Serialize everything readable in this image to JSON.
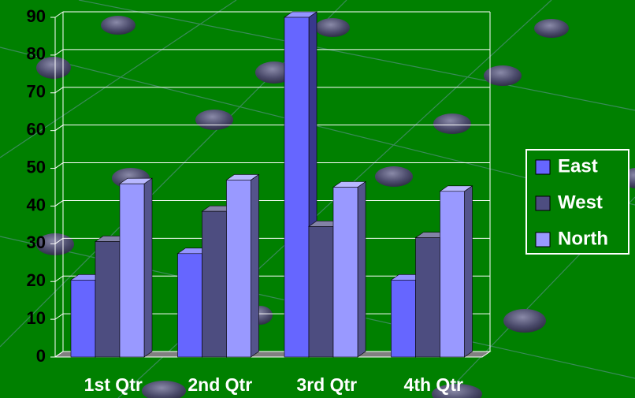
{
  "chart_data": {
    "type": "bar3d",
    "categories": [
      "1st Qtr",
      "2nd Qtr",
      "3rd Qtr",
      "4th Qtr"
    ],
    "series": [
      {
        "name": "East",
        "color": "#6666ff",
        "values": [
          20.4,
          27.4,
          90,
          20.4
        ]
      },
      {
        "name": "West",
        "color": "#4d4d80",
        "values": [
          30.6,
          38.6,
          34.6,
          31.6
        ]
      },
      {
        "name": "North",
        "color": "#9999ff",
        "values": [
          45.9,
          46.9,
          45,
          43.9
        ]
      }
    ],
    "ylim": [
      0,
      90
    ],
    "yticks": [
      0,
      10,
      20,
      30,
      40,
      50,
      60,
      70,
      80,
      90
    ],
    "grid": true,
    "legend": "right"
  }
}
